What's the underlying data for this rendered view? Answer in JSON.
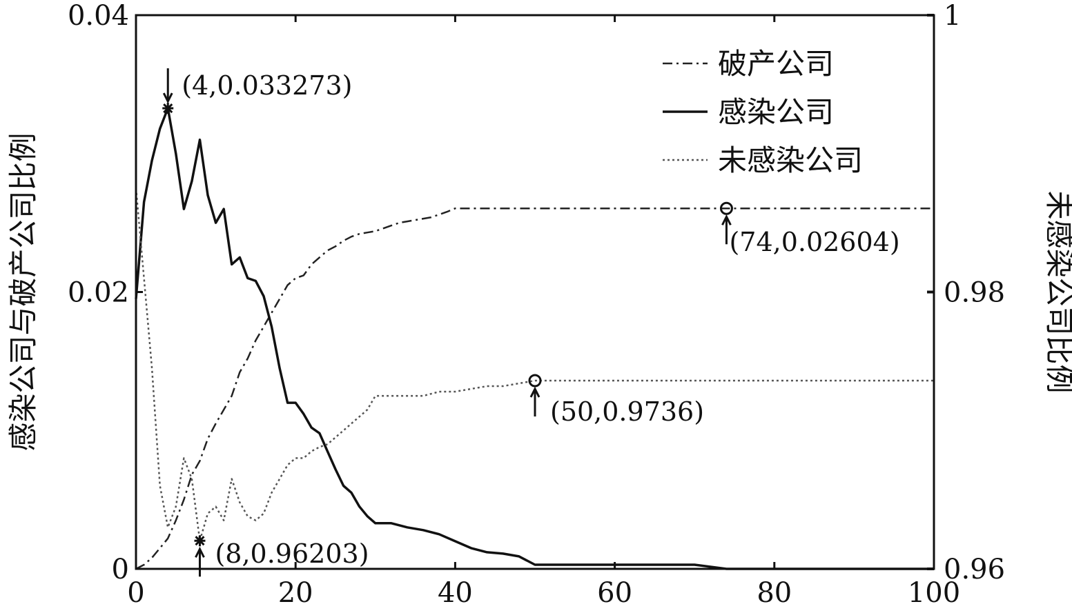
{
  "chart_data": {
    "type": "line",
    "xlim": [
      0,
      100
    ],
    "ylim_left": [
      0,
      0.04
    ],
    "ylim_right": [
      0.96,
      1
    ],
    "x_ticks": [
      "0",
      "20",
      "40",
      "60",
      "80",
      "100"
    ],
    "x_tick_values": [
      0,
      20,
      40,
      60,
      80,
      100
    ],
    "y_left_ticks": [
      "0",
      "0.02",
      "0.04"
    ],
    "y_left_tick_values": [
      0,
      0.02,
      0.04
    ],
    "y_right_ticks": [
      "0.96",
      "0.98",
      "1"
    ],
    "y_right_tick_values": [
      0.96,
      0.98,
      1
    ],
    "ylabel_left": "感染公司与破产公司比例",
    "ylabel_right": "未感染公司比例",
    "legend_position": "top-right",
    "grid": false,
    "series": [
      {
        "name": "破产公司",
        "axis": "left",
        "style": "dashdot",
        "color": "#222222",
        "x": [
          0,
          1,
          2,
          3,
          4,
          5,
          6,
          7,
          8,
          9,
          10,
          11,
          12,
          13,
          14,
          15,
          16,
          17,
          18,
          19,
          20,
          21,
          22,
          23,
          24,
          25,
          26,
          27,
          28,
          29,
          30,
          31,
          32,
          33,
          34,
          35,
          36,
          37,
          38,
          39,
          40,
          45,
          50,
          55,
          60,
          65,
          70,
          74,
          80,
          90,
          100
        ],
        "y": [
          0,
          0.0003,
          0.0008,
          0.0015,
          0.0022,
          0.0035,
          0.005,
          0.0068,
          0.0078,
          0.0094,
          0.0105,
          0.0115,
          0.0125,
          0.0142,
          0.0152,
          0.0165,
          0.0175,
          0.0185,
          0.0195,
          0.0205,
          0.021,
          0.0212,
          0.022,
          0.0225,
          0.023,
          0.0233,
          0.0237,
          0.024,
          0.0242,
          0.0243,
          0.0244,
          0.0246,
          0.0248,
          0.025,
          0.0251,
          0.0252,
          0.0253,
          0.0254,
          0.0256,
          0.0258,
          0.02604,
          0.02604,
          0.02604,
          0.02604,
          0.02604,
          0.02604,
          0.02604,
          0.02604,
          0.02604,
          0.02604,
          0.02604
        ]
      },
      {
        "name": "感染公司",
        "axis": "left",
        "style": "solid",
        "color": "#111111",
        "x": [
          0,
          1,
          2,
          3,
          4,
          5,
          6,
          7,
          8,
          9,
          10,
          11,
          12,
          13,
          14,
          15,
          16,
          17,
          18,
          19,
          20,
          21,
          22,
          23,
          24,
          25,
          26,
          27,
          28,
          29,
          30,
          32,
          34,
          36,
          38,
          40,
          42,
          44,
          46,
          48,
          50,
          55,
          60,
          65,
          70,
          74,
          80,
          90,
          100
        ],
        "y": [
          0.0195,
          0.0265,
          0.0295,
          0.0318,
          0.033273,
          0.03,
          0.026,
          0.028,
          0.031,
          0.027,
          0.025,
          0.026,
          0.022,
          0.0225,
          0.021,
          0.0208,
          0.0197,
          0.0175,
          0.0145,
          0.012,
          0.012,
          0.0112,
          0.0102,
          0.0098,
          0.0085,
          0.0072,
          0.006,
          0.0055,
          0.0045,
          0.0038,
          0.0033,
          0.0033,
          0.003,
          0.0028,
          0.0025,
          0.002,
          0.0015,
          0.0012,
          0.0011,
          0.0009,
          0.0003,
          0.0003,
          0.0003,
          0.0003,
          0.0003,
          0.0,
          0.0,
          0.0,
          0.0
        ]
      },
      {
        "name": "未感染公司",
        "axis": "right",
        "style": "dotted",
        "color": "#555555",
        "x": [
          0,
          1,
          2,
          3,
          4,
          5,
          6,
          7,
          8,
          9,
          10,
          11,
          12,
          13,
          14,
          15,
          16,
          17,
          18,
          19,
          20,
          21,
          22,
          23,
          24,
          25,
          26,
          27,
          28,
          29,
          30,
          32,
          34,
          36,
          38,
          40,
          42,
          44,
          46,
          48,
          50,
          55,
          60,
          65,
          70,
          74,
          80,
          90,
          100
        ],
        "y": [
          0.9875,
          0.981,
          0.9745,
          0.966,
          0.963,
          0.9645,
          0.968,
          0.9665,
          0.96203,
          0.964,
          0.9645,
          0.9635,
          0.9665,
          0.9648,
          0.9638,
          0.9635,
          0.964,
          0.9655,
          0.9665,
          0.9675,
          0.968,
          0.968,
          0.9685,
          0.9688,
          0.969,
          0.9695,
          0.97,
          0.9705,
          0.971,
          0.9715,
          0.9725,
          0.9725,
          0.9725,
          0.9725,
          0.9728,
          0.9728,
          0.973,
          0.9732,
          0.9732,
          0.9734,
          0.9736,
          0.9736,
          0.9736,
          0.9736,
          0.9736,
          0.9736,
          0.9736,
          0.9736,
          0.9736
        ]
      }
    ],
    "annotations": [
      {
        "text": "(4,0.033273)",
        "series": 1,
        "x": 4,
        "y": 0.033273,
        "arrow": "down",
        "marker": "star"
      },
      {
        "text": "(8,0.96203)",
        "series": 2,
        "x": 8,
        "y": 0.96203,
        "arrow": "up",
        "marker": "star"
      },
      {
        "text": "(50,0.9736)",
        "series": 2,
        "x": 50,
        "y": 0.9736,
        "arrow": "up",
        "marker": "circle"
      },
      {
        "text": "(74,0.02604)",
        "series": 0,
        "x": 74,
        "y": 0.02604,
        "arrow": "up",
        "marker": "circle"
      }
    ]
  }
}
